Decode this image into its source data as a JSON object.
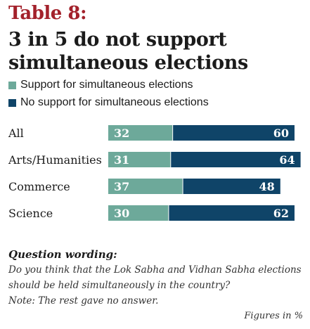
{
  "header": {
    "table_label": "Table 8:",
    "title": "3 in 5 do not support simultaneous elections"
  },
  "colors": {
    "support": "#6da99a",
    "no_support": "#0f4468",
    "table_label": "#a3212b"
  },
  "chart_data": {
    "type": "bar",
    "stacked": true,
    "orientation": "horizontal",
    "categories": [
      "All",
      "Arts/Humanities",
      "Commerce",
      "Science"
    ],
    "series": [
      {
        "name": "Support for simultaneous elections",
        "values": [
          32,
          31,
          37,
          30
        ]
      },
      {
        "name": "No support for simultaneous elections",
        "values": [
          60,
          64,
          48,
          62
        ]
      }
    ],
    "unit": "%",
    "legend_position": "top-left"
  },
  "footer": {
    "question_heading": "Question wording:",
    "question_line_1": "Do you think that the Lok Sabha and Vidhan Sabha elections",
    "question_line_2": "should be held simultaneously in the country?",
    "note": "Note: The rest gave no answer.",
    "figures_note": "Figures in %"
  }
}
